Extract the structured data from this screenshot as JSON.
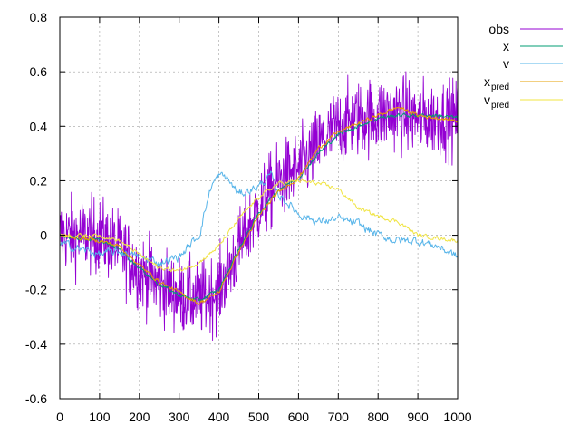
{
  "chart_data": {
    "type": "line",
    "xlim": [
      0,
      1000
    ],
    "ylim": [
      -0.6,
      0.8
    ],
    "xticks": [
      0,
      100,
      200,
      300,
      400,
      500,
      600,
      700,
      800,
      900,
      1000
    ],
    "yticks": [
      -0.6,
      -0.4,
      -0.2,
      0,
      0.2,
      0.4,
      0.6,
      0.8
    ],
    "xtick_labels": [
      "0",
      "100",
      "200",
      "300",
      "400",
      "500",
      "600",
      "700",
      "800",
      "900",
      "1000"
    ],
    "ytick_labels": [
      "-0.6",
      "-0.4",
      "-0.2",
      "0",
      "0.2",
      "0.4",
      "0.6",
      "0.8"
    ],
    "grid": true,
    "legend_position": "top-right, outside plot",
    "series": [
      {
        "name": "obs",
        "label_main": "obs",
        "label_sub": "",
        "color": "#9400d3",
        "style": "noisy-around-x",
        "x": [
          0,
          50,
          100,
          150,
          200,
          250,
          300,
          350,
          400,
          450,
          500,
          550,
          600,
          650,
          700,
          750,
          800,
          850,
          900,
          950,
          1000
        ],
        "values": [
          0.0,
          0.0,
          0.0,
          -0.05,
          -0.13,
          -0.18,
          -0.22,
          -0.24,
          -0.2,
          -0.05,
          0.1,
          0.2,
          0.24,
          0.33,
          0.4,
          0.43,
          0.44,
          0.45,
          0.43,
          0.43,
          0.43
        ]
      },
      {
        "name": "x",
        "label_main": "x",
        "label_sub": "",
        "color": "#009e73",
        "x": [
          0,
          50,
          100,
          150,
          200,
          250,
          300,
          350,
          400,
          450,
          500,
          550,
          600,
          650,
          700,
          750,
          800,
          850,
          900,
          950,
          1000
        ],
        "values": [
          0.0,
          -0.01,
          -0.02,
          -0.05,
          -0.12,
          -0.18,
          -0.22,
          -0.24,
          -0.2,
          -0.05,
          0.08,
          0.17,
          0.21,
          0.3,
          0.37,
          0.4,
          0.43,
          0.44,
          0.44,
          0.44,
          0.43
        ]
      },
      {
        "name": "v",
        "label_main": "v",
        "label_sub": "",
        "color": "#56b4e9",
        "x": [
          0,
          50,
          100,
          150,
          200,
          250,
          300,
          350,
          380,
          400,
          420,
          450,
          500,
          530,
          550,
          600,
          650,
          700,
          750,
          800,
          850,
          900,
          950,
          1000
        ],
        "values": [
          -0.03,
          -0.05,
          -0.07,
          -0.06,
          -0.08,
          -0.1,
          -0.08,
          0.0,
          0.18,
          0.22,
          0.21,
          0.15,
          0.18,
          0.22,
          0.15,
          0.08,
          0.05,
          0.06,
          0.04,
          0.0,
          -0.02,
          -0.02,
          -0.04,
          -0.08
        ]
      },
      {
        "name": "x_pred",
        "label_main": "x",
        "label_sub": "pred",
        "color": "#e69f00",
        "x": [
          0,
          50,
          100,
          150,
          200,
          250,
          300,
          350,
          400,
          450,
          500,
          550,
          600,
          650,
          700,
          750,
          800,
          850,
          900,
          950,
          1000
        ],
        "values": [
          0.0,
          -0.01,
          -0.02,
          -0.04,
          -0.11,
          -0.17,
          -0.21,
          -0.25,
          -0.21,
          -0.06,
          0.07,
          0.16,
          0.21,
          0.32,
          0.38,
          0.41,
          0.44,
          0.47,
          0.44,
          0.43,
          0.42
        ]
      },
      {
        "name": "v_pred",
        "label_main": "v",
        "label_sub": "pred",
        "color": "#f0e442",
        "x": [
          0,
          50,
          100,
          150,
          200,
          250,
          300,
          350,
          400,
          450,
          500,
          550,
          600,
          650,
          700,
          750,
          800,
          850,
          900,
          950,
          1000
        ],
        "values": [
          0.0,
          0.0,
          0.0,
          -0.02,
          -0.07,
          -0.12,
          -0.13,
          -0.1,
          -0.04,
          0.06,
          0.14,
          0.19,
          0.2,
          0.19,
          0.17,
          0.1,
          0.07,
          0.05,
          0.0,
          -0.01,
          -0.02
        ]
      }
    ]
  }
}
